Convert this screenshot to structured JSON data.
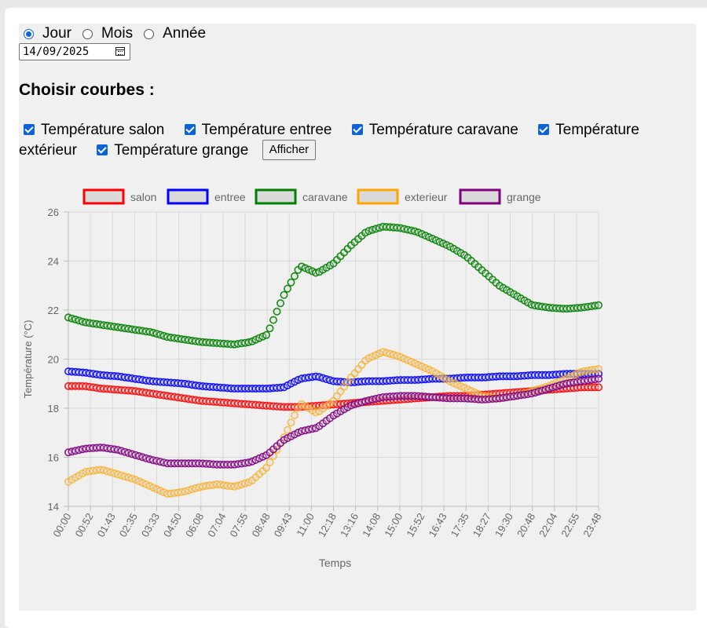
{
  "period_options": [
    {
      "label": "Jour",
      "selected": true
    },
    {
      "label": "Mois",
      "selected": false
    },
    {
      "label": "Année",
      "selected": false
    }
  ],
  "date_value": "14/09/2025",
  "heading": "Choisir courbes :",
  "curve_options": [
    {
      "label": "Température salon",
      "checked": true
    },
    {
      "label": "Température entree",
      "checked": true
    },
    {
      "label": "Température caravane",
      "checked": true
    },
    {
      "label": "Température extérieur",
      "checked": true
    },
    {
      "label": "Température grange",
      "checked": true
    }
  ],
  "show_button": "Afficher",
  "chart_data": {
    "type": "line",
    "xlabel": "Temps",
    "ylabel": "Température (°C)",
    "ylim": [
      14,
      26
    ],
    "yticks": [
      14,
      16,
      18,
      20,
      22,
      24,
      26
    ],
    "xticks": [
      "00:00",
      "00:52",
      "01:43",
      "02:35",
      "03:33",
      "04:50",
      "06:08",
      "07:04",
      "07:55",
      "08:48",
      "09:43",
      "11:00",
      "12:18",
      "13:16",
      "14:08",
      "15:00",
      "15:52",
      "16:43",
      "17:35",
      "18:27",
      "19:30",
      "20:48",
      "22:04",
      "22:55",
      "23:48"
    ],
    "grid": true,
    "legend_position": "top",
    "series": [
      {
        "name": "salon",
        "color": "#ff0000",
        "values": [
          18.9,
          18.9,
          18.8,
          18.75,
          18.7,
          18.6,
          18.5,
          18.4,
          18.3,
          18.25,
          18.2,
          18.15,
          18.1,
          18.05,
          18.05,
          18.1,
          18.15,
          18.2,
          18.25,
          18.3,
          18.35,
          18.4,
          18.45,
          18.5,
          18.5,
          18.55,
          18.6,
          18.65,
          18.7,
          18.75,
          18.8,
          18.85,
          18.85
        ]
      },
      {
        "name": "entree",
        "color": "#0000ff",
        "values": [
          19.5,
          19.45,
          19.35,
          19.3,
          19.2,
          19.1,
          19.05,
          19.0,
          18.9,
          18.85,
          18.8,
          18.8,
          18.8,
          18.85,
          19.2,
          19.3,
          19.1,
          19.05,
          19.1,
          19.1,
          19.15,
          19.15,
          19.2,
          19.2,
          19.25,
          19.25,
          19.3,
          19.3,
          19.35,
          19.35,
          19.4,
          19.4,
          19.4
        ]
      },
      {
        "name": "caravane",
        "color": "#008000",
        "values": [
          21.7,
          21.5,
          21.4,
          21.3,
          21.2,
          21.1,
          20.9,
          20.8,
          20.7,
          20.65,
          20.6,
          20.7,
          21.0,
          22.6,
          23.8,
          23.5,
          23.9,
          24.6,
          25.2,
          25.4,
          25.35,
          25.2,
          24.9,
          24.6,
          24.2,
          23.6,
          23.0,
          22.6,
          22.2,
          22.1,
          22.05,
          22.1,
          22.2
        ]
      },
      {
        "name": "exterieur",
        "color": "#ffa500",
        "values": [
          15.0,
          15.4,
          15.5,
          15.3,
          15.1,
          14.8,
          14.5,
          14.6,
          14.8,
          14.9,
          14.8,
          15.0,
          15.6,
          16.8,
          18.2,
          17.8,
          18.3,
          19.2,
          20.0,
          20.3,
          20.1,
          19.8,
          19.5,
          19.1,
          18.8,
          18.5,
          18.4,
          18.5,
          18.7,
          18.9,
          19.2,
          19.5,
          19.6
        ]
      },
      {
        "name": "grange",
        "color": "#800080",
        "values": [
          16.2,
          16.35,
          16.4,
          16.3,
          16.1,
          15.9,
          15.75,
          15.75,
          15.75,
          15.7,
          15.7,
          15.8,
          16.1,
          16.7,
          17.05,
          17.2,
          17.7,
          18.1,
          18.3,
          18.45,
          18.5,
          18.5,
          18.45,
          18.4,
          18.4,
          18.35,
          18.4,
          18.5,
          18.6,
          18.8,
          19.0,
          19.1,
          19.2
        ]
      }
    ]
  }
}
